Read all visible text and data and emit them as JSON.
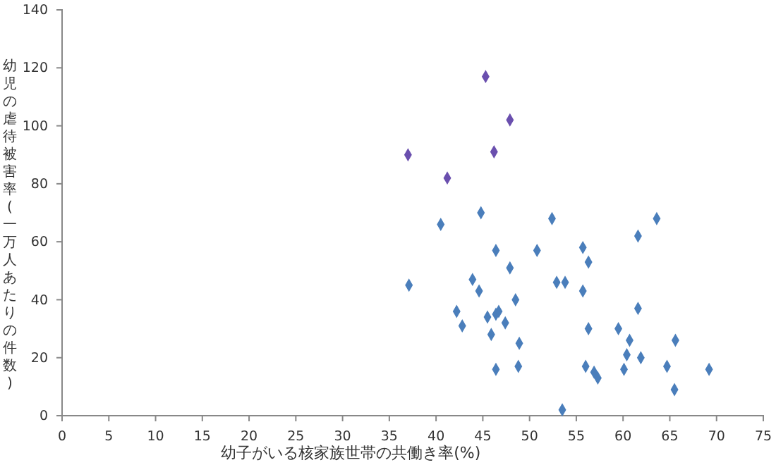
{
  "chart_data": {
    "type": "scatter",
    "xlabel": "幼子がいる核家族世帯の共働き率(%)",
    "ylabel": "幼児の虐待被害率(一万人あたりの件数)",
    "xlim": [
      0,
      75
    ],
    "xticks": [
      0,
      5,
      10,
      15,
      20,
      25,
      30,
      35,
      40,
      45,
      50,
      55,
      60,
      65,
      70,
      75
    ],
    "ylim": [
      0,
      140
    ],
    "yticks": [
      0,
      20,
      40,
      60,
      80,
      100,
      120,
      140
    ],
    "grid": false,
    "marker": "diamond",
    "series": [
      {
        "color": "#4a7ebb",
        "x": [
          40.5,
          44.8,
          52.4,
          37.1,
          46.4,
          50.8,
          55.7,
          56.3,
          47.9,
          43.9,
          44.6,
          52.9,
          53.8,
          55.7,
          48.5,
          42.2,
          46.4,
          46.7,
          45.5,
          42.8,
          47.4,
          56.3,
          45.9,
          48.9,
          46.4,
          48.8,
          56.0,
          56.9,
          57.3,
          53.5,
          63.6,
          61.6,
          61.6,
          59.5,
          60.7,
          65.6,
          60.4,
          61.9,
          64.7,
          69.2,
          60.1,
          65.5
        ],
        "values": [
          66,
          70,
          68,
          45,
          57,
          57,
          58,
          53,
          51,
          47,
          43,
          46,
          46,
          43,
          40,
          36,
          35,
          36,
          34,
          31,
          32,
          30,
          28,
          25,
          16,
          17,
          17,
          15,
          13,
          2,
          68,
          62,
          37,
          30,
          26,
          26,
          21,
          20,
          17,
          16,
          16,
          9
        ]
      },
      {
        "color": "#6a4fae",
        "x": [
          37.0,
          41.2,
          46.2,
          47.9,
          45.3
        ],
        "values": [
          90,
          82,
          91,
          102,
          117
        ]
      }
    ]
  }
}
